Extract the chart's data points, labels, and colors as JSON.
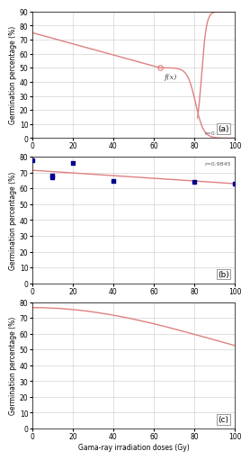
{
  "panel_a": {
    "label": "(a)",
    "ylim": [
      0,
      90
    ],
    "yticks": [
      0,
      10,
      20,
      30,
      40,
      50,
      60,
      70,
      80,
      90
    ],
    "xlim": [
      0,
      100
    ],
    "xticks": [
      0,
      20,
      40,
      60,
      80,
      100
    ],
    "marker_x": 63,
    "marker_y": 50,
    "annotation": "f(x)",
    "r_text": "r=0.9845"
  },
  "panel_b": {
    "label": "(b)",
    "ylim": [
      0,
      80
    ],
    "yticks": [
      0,
      10,
      20,
      30,
      40,
      50,
      60,
      70,
      80
    ],
    "xlim": [
      0,
      100
    ],
    "xticks": [
      0,
      20,
      40,
      60,
      80,
      100
    ],
    "scatter_x": [
      0,
      10,
      10,
      20,
      40,
      80,
      100
    ],
    "scatter_y": [
      78,
      68,
      67,
      76,
      65,
      64,
      63
    ],
    "line_start_y": 71.5,
    "line_end_y": 63.0,
    "r_text": "r=0.9845"
  },
  "panel_c": {
    "label": "(c)",
    "ylim": [
      0,
      80
    ],
    "yticks": [
      0,
      10,
      20,
      30,
      40,
      50,
      60,
      70,
      80
    ],
    "xlim": [
      0,
      100
    ],
    "xticks": [
      0,
      20,
      40,
      60,
      80,
      100
    ],
    "curve_start": 76.5,
    "curve_end": 56.0
  },
  "curve_color": "#e08080",
  "scatter_color": "#00008B",
  "grid_color": "#c8c8c8",
  "bg_color": "#ffffff",
  "ylabel": "Germination percentage (%)",
  "xlabel": "Gama-ray irradiation doses (Gy)",
  "tick_fontsize": 5.5,
  "label_fontsize": 5.5
}
